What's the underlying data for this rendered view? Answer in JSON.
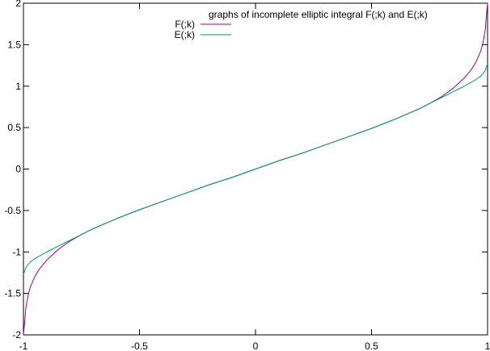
{
  "chart_data": {
    "type": "line",
    "title": "graphs of incomplete elliptic integral F(;k) and E(;k)",
    "xlabel": "",
    "ylabel": "",
    "xlim": [
      -1,
      1
    ],
    "ylim": [
      -2,
      2
    ],
    "x_ticks": [
      -1,
      -0.5,
      0,
      0.5,
      1
    ],
    "x_tick_labels": [
      "-1",
      "-0.5",
      "0",
      "0.5",
      "1"
    ],
    "y_ticks": [
      -2,
      -1.5,
      -1,
      -0.5,
      0,
      0.5,
      1,
      1.5,
      2
    ],
    "y_tick_labels": [
      "-2",
      "-1.5",
      "-1",
      "-0.5",
      "0",
      "0.5",
      "1",
      "1.5",
      "2"
    ],
    "grid": false,
    "legend_position": "top-center",
    "series": [
      {
        "name": "F(;k)",
        "color": "#990099",
        "x": [
          -1,
          -0.995,
          -0.99,
          -0.98,
          -0.97,
          -0.95,
          -0.93,
          -0.9,
          -0.85,
          -0.8,
          -0.75,
          -0.7,
          -0.65,
          -0.6,
          -0.5,
          -0.4,
          -0.3,
          -0.2,
          -0.1,
          0,
          0.1,
          0.2,
          0.3,
          0.4,
          0.5,
          0.6,
          0.65,
          0.7,
          0.75,
          0.8,
          0.85,
          0.9,
          0.93,
          0.95,
          0.97,
          0.98,
          0.99,
          0.995,
          1
        ],
        "values": [
          -2.0,
          -1.85,
          -1.68,
          -1.52,
          -1.42,
          -1.29,
          -1.2,
          -1.1,
          -0.97,
          -0.87,
          -0.79,
          -0.72,
          -0.66,
          -0.6,
          -0.49,
          -0.39,
          -0.29,
          -0.19,
          -0.1,
          0,
          0.1,
          0.19,
          0.29,
          0.39,
          0.49,
          0.6,
          0.66,
          0.72,
          0.79,
          0.87,
          0.97,
          1.1,
          1.2,
          1.29,
          1.42,
          1.52,
          1.68,
          1.85,
          2.0
        ]
      },
      {
        "name": "E(;k)",
        "color": "#009966",
        "x": [
          -1,
          -0.995,
          -0.99,
          -0.98,
          -0.97,
          -0.95,
          -0.9,
          -0.85,
          -0.8,
          -0.75,
          -0.7,
          -0.6,
          -0.5,
          -0.4,
          -0.3,
          -0.2,
          -0.1,
          0,
          0.1,
          0.2,
          0.3,
          0.4,
          0.5,
          0.6,
          0.7,
          0.75,
          0.8,
          0.85,
          0.9,
          0.95,
          0.97,
          0.98,
          0.99,
          0.995,
          1
        ],
        "values": [
          -1.27,
          -1.23,
          -1.19,
          -1.15,
          -1.12,
          -1.08,
          -1.0,
          -0.93,
          -0.86,
          -0.79,
          -0.72,
          -0.6,
          -0.49,
          -0.39,
          -0.29,
          -0.19,
          -0.1,
          0,
          0.1,
          0.19,
          0.29,
          0.39,
          0.49,
          0.6,
          0.72,
          0.79,
          0.86,
          0.93,
          1.0,
          1.08,
          1.12,
          1.15,
          1.19,
          1.23,
          1.27
        ]
      }
    ]
  }
}
